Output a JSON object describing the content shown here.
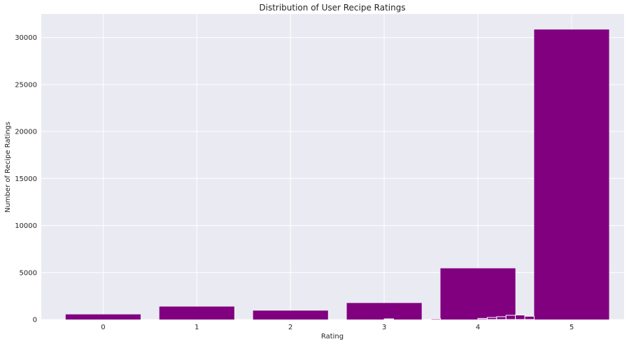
{
  "chart_data": {
    "type": "bar",
    "title": "Distribution of User Recipe Ratings",
    "xlabel": "Rating",
    "ylabel": "Number of Recipe Ratings",
    "ylim": [
      0,
      32500
    ],
    "xlim": [
      -0.66,
      5.56
    ],
    "yticks": [
      0,
      5000,
      10000,
      15000,
      20000,
      25000,
      30000
    ],
    "xticks": [
      0,
      1,
      2,
      3,
      4,
      5
    ],
    "grid": true,
    "bar_color": "#800080",
    "background_color": "#eaeaf2",
    "grid_color": "#ffffff",
    "main_bars": [
      {
        "x": 0,
        "value": 550
      },
      {
        "x": 1,
        "value": 1380
      },
      {
        "x": 2,
        "value": 950
      },
      {
        "x": 3,
        "value": 1760
      },
      {
        "x": 4,
        "value": 5450
      },
      {
        "x": 5,
        "value": 30850
      }
    ],
    "small_bars": [
      {
        "x": 3.0,
        "value": 70
      },
      {
        "x": 3.5,
        "value": 110
      },
      {
        "x": 4.0,
        "value": 120
      },
      {
        "x": 4.1,
        "value": 220
      },
      {
        "x": 4.2,
        "value": 300
      },
      {
        "x": 4.3,
        "value": 450
      },
      {
        "x": 4.4,
        "value": 480
      },
      {
        "x": 4.5,
        "value": 350
      }
    ]
  }
}
